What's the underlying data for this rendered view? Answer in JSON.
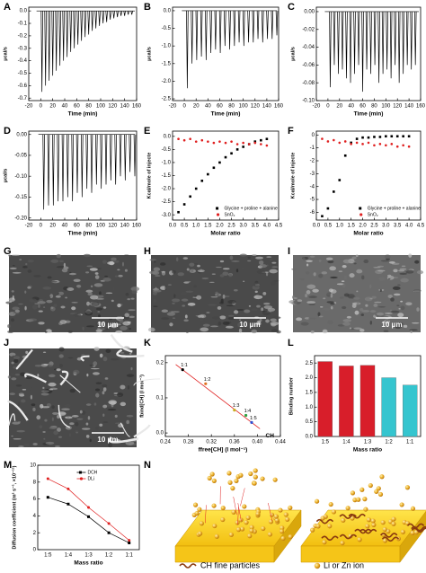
{
  "panel_labels": [
    "A",
    "B",
    "C",
    "D",
    "E",
    "F",
    "G",
    "H",
    "I",
    "J",
    "K",
    "L",
    "M",
    "N"
  ],
  "chart_data": [
    {
      "type": "thermogram",
      "x_label": "Time (min)",
      "y_label": "μcal/s",
      "x": [
        2,
        8,
        14,
        20,
        26,
        32,
        38,
        44,
        50,
        56,
        62,
        68,
        74,
        80,
        86,
        92,
        98,
        104,
        110,
        116,
        122,
        128,
        134,
        140,
        146,
        152
      ],
      "values": [
        -0.65,
        -0.6,
        -0.56,
        -0.52,
        -0.48,
        -0.44,
        -0.4,
        -0.37,
        -0.33,
        -0.3,
        -0.27,
        -0.24,
        -0.21,
        -0.19,
        -0.16,
        -0.14,
        -0.12,
        -0.1,
        -0.09,
        -0.07,
        -0.06,
        -0.05,
        -0.04,
        -0.04,
        -0.03,
        -0.03
      ],
      "color": "#000000",
      "xlim": [
        -20,
        160
      ],
      "xticks": [
        -20,
        0,
        20,
        40,
        60,
        80,
        100,
        120,
        140,
        160
      ],
      "ylim": [
        -0.72,
        0.03
      ],
      "yticks": [
        {
          "value": 0,
          "label": "0.0"
        },
        -0.1,
        -0.2,
        -0.3,
        -0.4,
        -0.5,
        -0.6,
        -0.7
      ]
    },
    {
      "type": "thermogram",
      "x_label": "Time (min)",
      "y_label": "μcal/s",
      "x": [
        5,
        13,
        21,
        29,
        37,
        45,
        53,
        61,
        69,
        77,
        85,
        93,
        101,
        109,
        117,
        125,
        133,
        141,
        149,
        157
      ],
      "values": [
        -2.2,
        -1.5,
        -1.4,
        -1.3,
        -1.4,
        -1.2,
        -1.1,
        -1.2,
        -1.0,
        -1.1,
        -1.0,
        -0.9,
        -1.0,
        -0.9,
        -0.9,
        -0.8,
        -0.9,
        -0.8,
        -0.8,
        -0.7
      ],
      "color": "#000000",
      "xlim": [
        -20,
        160
      ],
      "xticks": [
        -20,
        0,
        20,
        40,
        60,
        80,
        100,
        120,
        140,
        160
      ],
      "ylim": [
        -2.55,
        0.1
      ],
      "yticks": [
        {
          "value": 0,
          "label": "0.0"
        },
        -0.5,
        {
          "value": -1,
          "label": "-1.0"
        },
        -1.5,
        {
          "value": -2,
          "label": "-2.0"
        },
        -2.5
      ]
    },
    {
      "type": "thermogram",
      "x_label": "Time (min)",
      "y_label": "μcal/s",
      "x": [
        4,
        11,
        18,
        25,
        32,
        39,
        46,
        53,
        60,
        67,
        74,
        81,
        88,
        95,
        102,
        109,
        116,
        123,
        130,
        137,
        144,
        151
      ],
      "values": [
        -0.085,
        -0.06,
        -0.07,
        -0.065,
        -0.075,
        -0.08,
        -0.07,
        -0.06,
        -0.09,
        -0.065,
        -0.07,
        -0.06,
        -0.08,
        -0.07,
        -0.065,
        -0.075,
        -0.06,
        -0.08,
        -0.07,
        -0.06,
        -0.065,
        -0.06
      ],
      "color": "#000000",
      "xlim": [
        -20,
        160
      ],
      "xticks": [
        -20,
        0,
        20,
        40,
        60,
        80,
        100,
        120,
        140,
        160
      ],
      "ylim": [
        -0.1,
        0.005
      ],
      "yticks": [
        {
          "value": 0,
          "label": "0.00"
        },
        -0.02,
        -0.04,
        -0.06,
        -0.08,
        {
          "value": -0.1,
          "label": "-0.10"
        }
      ]
    },
    {
      "type": "thermogram",
      "x_label": "Time (min)",
      "y_label": "μcal/s",
      "x": [
        5,
        13,
        21,
        29,
        37,
        45,
        53,
        61,
        69,
        77,
        85,
        93,
        101,
        109,
        117,
        125,
        133,
        141,
        149,
        157
      ],
      "values": [
        -0.18,
        -0.17,
        -0.17,
        -0.16,
        -0.16,
        -0.15,
        -0.16,
        -0.14,
        -0.15,
        -0.13,
        -0.14,
        -0.12,
        -0.13,
        -0.12,
        -0.11,
        -0.12,
        -0.1,
        -0.11,
        -0.09,
        -0.1
      ],
      "color": "#000000",
      "xlim": [
        -20,
        160
      ],
      "xticks": [
        -20,
        0,
        20,
        40,
        60,
        80,
        100,
        120,
        140,
        160
      ],
      "ylim": [
        -0.205,
        0.008
      ],
      "yticks": [
        {
          "value": 0,
          "label": "0.00"
        },
        -0.05,
        {
          "value": -0.1,
          "label": "-0.10"
        },
        -0.15,
        {
          "value": -0.2,
          "label": "-0.20"
        }
      ]
    },
    {
      "type": "scatter",
      "x_label": "Molar ratio",
      "y_label": "Kcal/mole of injecte",
      "legend": "lower right",
      "series": [
        {
          "name": "Glycine + proline + alanine",
          "color": "#000000",
          "marker": "square",
          "x": [
            0.25,
            0.5,
            0.75,
            1,
            1.25,
            1.5,
            1.75,
            2,
            2.25,
            2.5,
            2.75,
            3,
            3.25,
            3.5,
            3.75,
            4
          ],
          "values": [
            -2.9,
            -2.6,
            -2.3,
            -2.0,
            -1.7,
            -1.45,
            -1.2,
            -1.0,
            -0.8,
            -0.65,
            -0.5,
            -0.4,
            -0.3,
            -0.2,
            -0.15,
            -0.1
          ]
        },
        {
          "name": "SnO₂",
          "color": "#e02020",
          "marker": "circle",
          "x": [
            0.25,
            0.5,
            0.75,
            1,
            1.25,
            1.5,
            1.75,
            2,
            2.25,
            2.5,
            2.75,
            3,
            3.25,
            3.5,
            3.75,
            4
          ],
          "values": [
            -0.1,
            -0.15,
            -0.1,
            -0.2,
            -0.15,
            -0.2,
            -0.25,
            -0.2,
            -0.25,
            -0.2,
            -0.3,
            -0.25,
            -0.3,
            -0.25,
            -0.3,
            -0.35
          ]
        }
      ],
      "xlim": [
        0,
        4.5
      ],
      "xticks": [
        {
          "value": 0,
          "label": "0.0"
        },
        0.5,
        {
          "value": 1,
          "label": "1.0"
        },
        1.5,
        {
          "value": 2,
          "label": "2.0"
        },
        2.5,
        {
          "value": 3,
          "label": "3.0"
        },
        3.5,
        {
          "value": 4,
          "label": "4.0"
        },
        4.5
      ],
      "ylim": [
        -3.2,
        0.2
      ],
      "yticks": [
        {
          "value": 0,
          "label": "0.0"
        },
        -0.5,
        {
          "value": -1,
          "label": "-1.0"
        },
        -1.5,
        {
          "value": -2,
          "label": "-2.0"
        },
        -2.5,
        {
          "value": -3,
          "label": "-3.0"
        }
      ]
    },
    {
      "type": "scatter",
      "x_label": "Molar ratio",
      "y_label": "Kcal/mole of injecte",
      "legend": "lower right",
      "series": [
        {
          "name": "Glycine + proline + alanine",
          "color": "#000000",
          "marker": "square",
          "x": [
            0.25,
            0.5,
            0.75,
            1,
            1.25,
            1.5,
            1.75,
            2,
            2.25,
            2.5,
            2.75,
            3,
            3.25,
            3.5,
            3.75,
            4
          ],
          "values": [
            -6.3,
            -5.7,
            -4.4,
            -3.5,
            -1.6,
            -0.6,
            -0.3,
            -0.2,
            -0.2,
            -0.15,
            -0.15,
            -0.1,
            -0.1,
            -0.1,
            -0.1,
            -0.1
          ]
        },
        {
          "name": "SnO₂",
          "color": "#e02020",
          "marker": "circle",
          "x": [
            0.25,
            0.5,
            0.75,
            1,
            1.25,
            1.5,
            1.75,
            2,
            2.25,
            2.5,
            2.75,
            3,
            3.25,
            3.5,
            3.75,
            4
          ],
          "values": [
            -0.3,
            -0.5,
            -0.4,
            -0.6,
            -0.5,
            -0.7,
            -0.6,
            -0.7,
            -0.6,
            -0.8,
            -0.7,
            -0.8,
            -0.7,
            -0.9,
            -0.8,
            -0.9
          ]
        }
      ],
      "xlim": [
        0,
        4.5
      ],
      "xticks": [
        {
          "value": 0,
          "label": "0.0"
        },
        0.5,
        {
          "value": 1,
          "label": "1.0"
        },
        1.5,
        {
          "value": 2,
          "label": "2.0"
        },
        2.5,
        {
          "value": 3,
          "label": "3.0"
        },
        3.5,
        {
          "value": 4,
          "label": "4.0"
        },
        4.5
      ],
      "ylim": [
        -6.6,
        0.3
      ],
      "yticks": [
        0,
        -1,
        -2,
        -3,
        -4,
        -5,
        -6
      ]
    },
    {
      "type": "scatter",
      "x_label": "ffree[CH] (l mol⁻¹)",
      "y_label": "fbind[CH] (l mol⁻¹)",
      "line_label": "CH",
      "fit_line": true,
      "series": [
        {
          "color": "#e02020",
          "marker": "circle",
          "x": [
            0.27,
            0.31,
            0.36,
            0.38,
            0.39
          ],
          "values": [
            0.18,
            0.14,
            0.065,
            0.05,
            0.03
          ],
          "point_labels": [
            "1:1",
            "1:2",
            "1:3",
            "1:4",
            "1:5"
          ],
          "point_colors": [
            "#000000",
            "#e07020",
            "#c8b020",
            "#30a040",
            "#3050d0"
          ]
        }
      ],
      "xlim": [
        0.24,
        0.44
      ],
      "xticks": [
        0.24,
        0.28,
        0.32,
        0.36,
        {
          "value": 0.4,
          "label": "0.40"
        },
        0.44
      ],
      "ylim": [
        -0.01,
        0.22
      ],
      "yticks": [
        {
          "value": 0,
          "label": "0.0"
        },
        0.1,
        0.2
      ]
    },
    {
      "type": "bar",
      "x_label": "Mass ratio",
      "y_label": "Binding number",
      "categories": [
        "1:5",
        "1:4",
        "1:3",
        "1:2",
        "1:1"
      ],
      "values": [
        2.55,
        2.4,
        2.42,
        2.0,
        1.75
      ],
      "colors": [
        "#d81e2a",
        "#d81e2a",
        "#d81e2a",
        "#35c5cf",
        "#35c5cf"
      ],
      "ylim": [
        0,
        2.75
      ],
      "yticks": [
        {
          "value": 0,
          "label": "0.0"
        },
        0.5,
        {
          "value": 1,
          "label": "1.0"
        },
        1.5,
        {
          "value": 2,
          "label": "2.0"
        },
        2.5
      ]
    },
    {
      "type": "line",
      "x_label": "Mass ratio",
      "y_label": "Diffusion coefficient (m² s⁻¹, ×10⁻¹¹)",
      "legend": "upper right",
      "categories": [
        "1:5",
        "1:4",
        "1:3",
        "1:2",
        "1:1"
      ],
      "series": [
        {
          "name": "DCH",
          "color": "#000000",
          "marker": "square",
          "values": [
            6.2,
            5.4,
            3.9,
            2.0,
            0.8
          ]
        },
        {
          "name": "DLi",
          "color": "#e02020",
          "marker": "circle",
          "values": [
            8.4,
            7.2,
            5.0,
            3.1,
            1.1
          ]
        }
      ],
      "ylim": [
        0,
        10
      ],
      "yticks": [
        0,
        2,
        4,
        6,
        8,
        10
      ]
    }
  ],
  "images": [
    {
      "scale_bar": "10 μm"
    },
    {
      "scale_bar": "10 μm"
    },
    {
      "scale_bar": "10 μm"
    },
    {
      "scale_bar": "10 μm"
    }
  ],
  "diagram": {
    "legend": [
      "CH fine particles",
      "Li or Zn ion"
    ]
  }
}
